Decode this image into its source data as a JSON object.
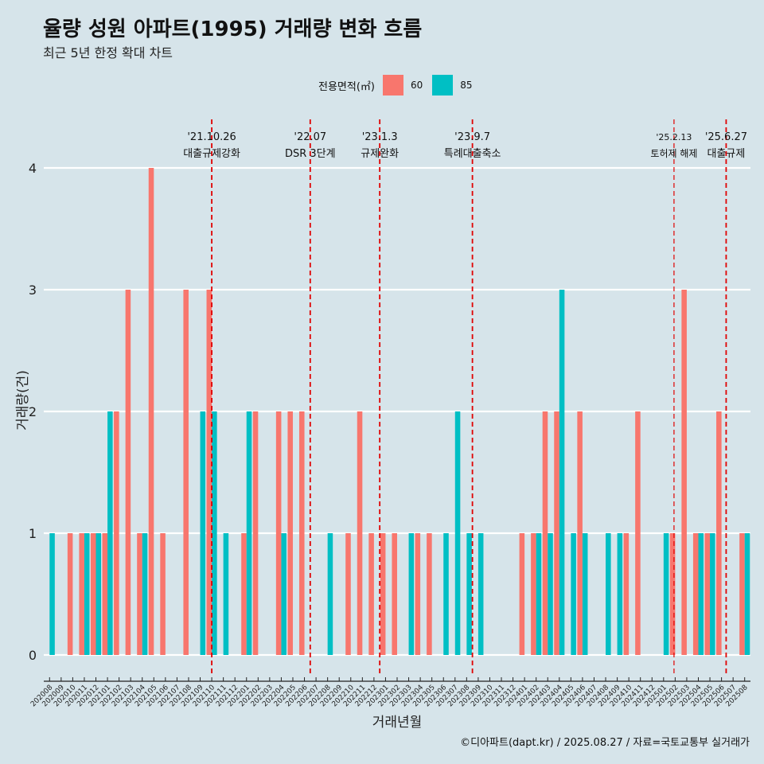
{
  "title": "율량 성원 아파트(1995) 거래량 변화 흐름",
  "subtitle": "최근 5년 한정 확대 차트",
  "legend": {
    "title": "전용면적(㎡)",
    "items": [
      {
        "label": "60",
        "color": "#f8766d"
      },
      {
        "label": "85",
        "color": "#00bfc4"
      }
    ]
  },
  "caption": "©디아파트(dapt.kr) / 2025.08.27 / 자료=국토교통부 실거래가",
  "chart_data": {
    "type": "bar",
    "xlabel": "거래년월",
    "ylabel": "거래량(건)",
    "ylim": [
      0,
      4
    ],
    "yticks": [
      0,
      1,
      2,
      3,
      4
    ],
    "grid": true,
    "categories": [
      "202008",
      "202009",
      "202010",
      "202011",
      "202012",
      "202101",
      "202102",
      "202103",
      "202104",
      "202105",
      "202106",
      "202107",
      "202108",
      "202109",
      "202110",
      "202111",
      "202112",
      "202201",
      "202202",
      "202203",
      "202204",
      "202205",
      "202206",
      "202207",
      "202208",
      "202209",
      "202210",
      "202211",
      "202212",
      "202301",
      "202302",
      "202303",
      "202304",
      "202305",
      "202306",
      "202307",
      "202308",
      "202309",
      "202310",
      "202311",
      "202312",
      "202401",
      "202402",
      "202403",
      "202404",
      "202405",
      "202406",
      "202407",
      "202408",
      "202409",
      "202410",
      "202411",
      "202412",
      "202501",
      "202502",
      "202503",
      "202504",
      "202505",
      "202506",
      "202507",
      "202508"
    ],
    "series": [
      {
        "name": "60",
        "color": "#f8766d",
        "values": [
          0,
          0,
          1,
          1,
          1,
          1,
          2,
          3,
          1,
          4,
          1,
          0,
          3,
          0,
          3,
          0,
          0,
          1,
          2,
          0,
          2,
          2,
          2,
          0,
          0,
          0,
          1,
          2,
          1,
          1,
          1,
          0,
          1,
          1,
          0,
          0,
          0,
          0,
          0,
          0,
          0,
          1,
          1,
          2,
          2,
          0,
          2,
          0,
          0,
          0,
          1,
          2,
          0,
          0,
          1,
          3,
          1,
          1,
          2,
          0,
          1
        ]
      },
      {
        "name": "85",
        "color": "#00bfc4",
        "values": [
          1,
          0,
          0,
          1,
          1,
          2,
          0,
          0,
          1,
          0,
          0,
          0,
          0,
          2,
          2,
          1,
          0,
          2,
          0,
          0,
          1,
          0,
          0,
          0,
          1,
          0,
          0,
          0,
          0,
          0,
          0,
          1,
          0,
          0,
          1,
          2,
          1,
          1,
          0,
          0,
          0,
          0,
          1,
          1,
          3,
          1,
          1,
          0,
          1,
          1,
          0,
          0,
          0,
          1,
          0,
          0,
          1,
          1,
          0,
          0,
          1
        ]
      }
    ],
    "annotations": [
      {
        "date": "'21.10.26",
        "text": "대출규제강화",
        "position": 14.5
      },
      {
        "date": "'22.07",
        "text": "DSR 3단계",
        "position": 23
      },
      {
        "date": "'23.1.3",
        "text": "규제완화",
        "position": 29
      },
      {
        "date": "'23.9.7",
        "text": "특례대출축소",
        "position": 37
      },
      {
        "date": "'25.2.13",
        "text": "토허제 해제",
        "position": 54.4
      },
      {
        "date": "'25.6.27",
        "text": "대출규제",
        "position": 58.9
      }
    ]
  }
}
